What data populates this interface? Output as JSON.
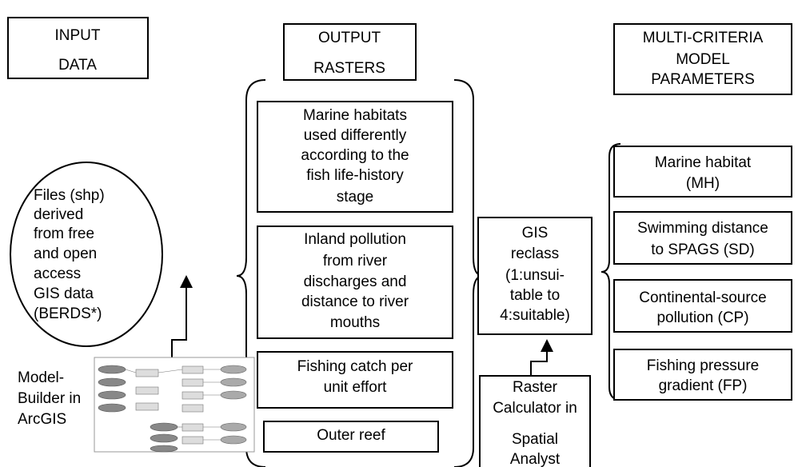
{
  "headers": {
    "input": [
      "INPUT",
      "DATA"
    ],
    "output": [
      "OUTPUT",
      "RASTERS"
    ],
    "parameters": [
      "MULTI-CRITERIA",
      "MODEL",
      "PARAMETERS"
    ]
  },
  "input_files": [
    "Files (shp)",
    "derived",
    "from free",
    "and open",
    "access",
    "GIS data",
    "(BERDS*)"
  ],
  "model_builder": [
    "Model-",
    "Builder in",
    "ArcGIS"
  ],
  "output_rasters": [
    [
      "Marine habitats",
      "used differently",
      "according to the",
      "fish life-history",
      "stage"
    ],
    [
      "Inland pollution",
      "from river",
      "discharges and",
      "distance to river",
      "mouths"
    ],
    [
      "Fishing catch per",
      "unit effort"
    ],
    [
      "Outer reef"
    ]
  ],
  "gis_reclass": [
    "GIS",
    "reclass",
    "(1:unsui-",
    "table to",
    "4:suitable)"
  ],
  "raster_calculator": [
    "Raster",
    "Calculator in",
    "Spatial",
    "Analyst"
  ],
  "parameters": [
    [
      "Marine habitat",
      "(MH)"
    ],
    [
      "Swimming distance",
      "to SPAGS (SD)"
    ],
    [
      "Continental-source",
      "pollution (CP)"
    ],
    [
      "Fishing pressure",
      "gradient (FP)"
    ]
  ]
}
